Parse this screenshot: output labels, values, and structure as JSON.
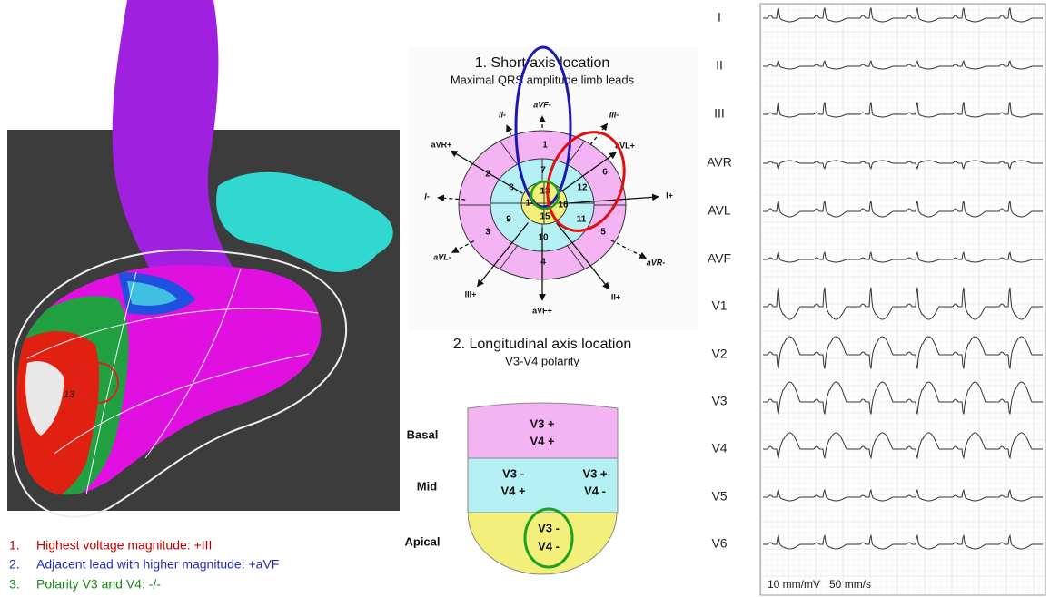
{
  "map": {
    "label": "13"
  },
  "legend": [
    {
      "number": "1.",
      "text": "Highest voltage magnitude: +III"
    },
    {
      "number": "2.",
      "text": "Adjacent lead with higher magnitude: +aVF"
    },
    {
      "number": "3.",
      "text": "Polarity V3 and V4: -/-"
    }
  ],
  "short_axis": {
    "title": "1. Short axis location",
    "subtitle": "Maximal QRS amplitude limb leads",
    "segments": [
      "1",
      "2",
      "3",
      "4",
      "5",
      "6",
      "7",
      "8",
      "9",
      "10",
      "11",
      "12",
      "13",
      "14",
      "15",
      "16"
    ],
    "leads": [
      "aVF-",
      "II-",
      "III-",
      "aVR+",
      "aVL+",
      "I-",
      "I+",
      "aVL-",
      "aVR-",
      "III+",
      "II+",
      "aVF+"
    ]
  },
  "longitudinal": {
    "title": "2. Longitudinal axis location",
    "subtitle": "V3-V4 polarity",
    "levels": [
      {
        "name": "Basal",
        "cells": [
          [
            "V3 +",
            "V4 +"
          ]
        ]
      },
      {
        "name": "Mid",
        "cells": [
          [
            "V3 -",
            "V4 +"
          ],
          [
            "V3 +",
            "V4 -"
          ]
        ]
      },
      {
        "name": "Apical",
        "cells": [
          [
            "V3 -",
            "V4 -"
          ]
        ]
      }
    ]
  },
  "ecg": {
    "leads": [
      "I",
      "II",
      "III",
      "AVR",
      "AVL",
      "AVF",
      "V1",
      "V2",
      "V3",
      "V4",
      "V5",
      "V6"
    ],
    "calibration": "10 mm/mV   50 mm/s"
  }
}
